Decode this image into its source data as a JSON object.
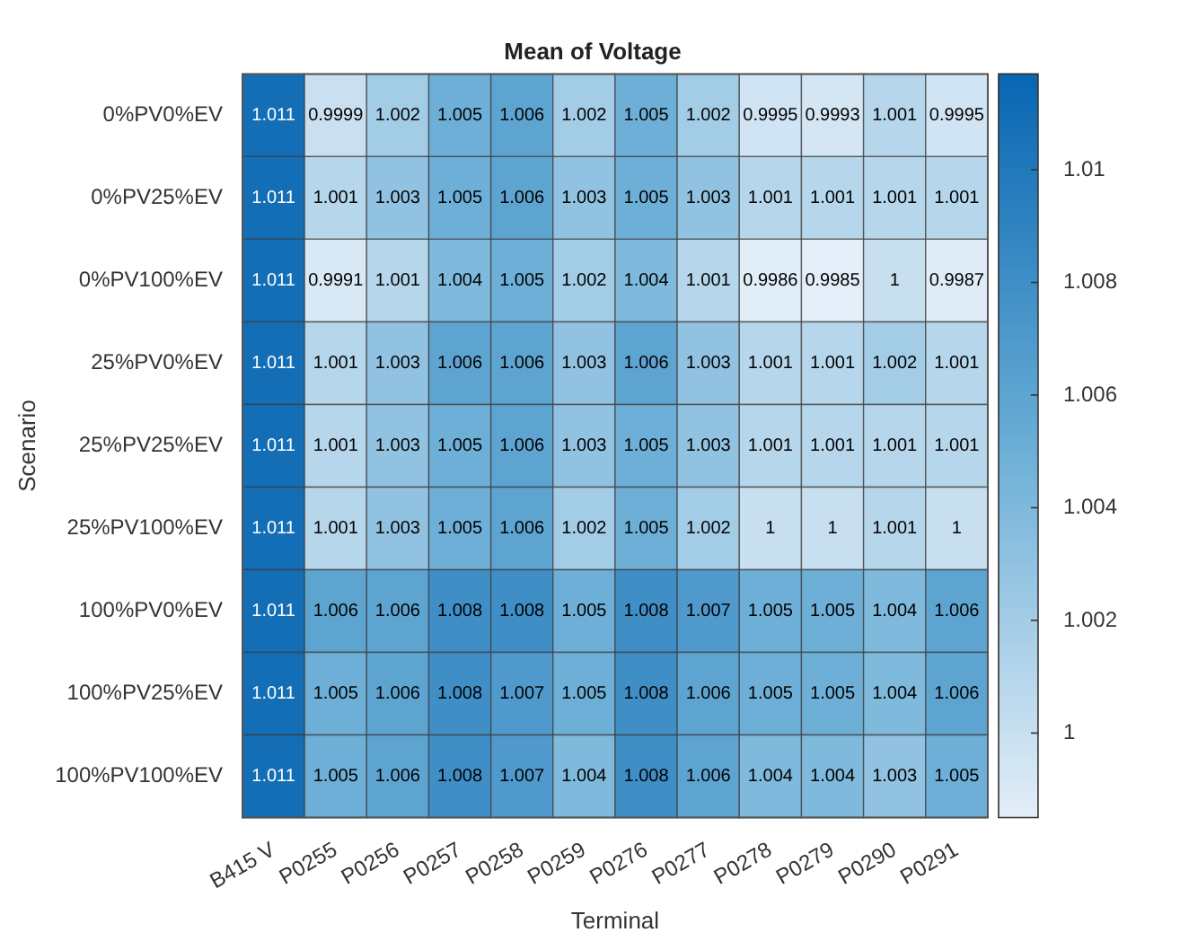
{
  "chart_data": {
    "type": "heatmap",
    "title": "Mean of Voltage",
    "xlabel": "Terminal",
    "ylabel": "Scenario",
    "categories": [
      "B415 V",
      "P0255",
      "P0256",
      "P0257",
      "P0258",
      "P0259",
      "P0276",
      "P0277",
      "P0278",
      "P0279",
      "P0290",
      "P0291"
    ],
    "y_categories": [
      "0%PV0%EV",
      "0%PV25%EV",
      "0%PV100%EV",
      "25%PV0%EV",
      "25%PV25%EV",
      "25%PV100%EV",
      "100%PV0%EV",
      "100%PV25%EV",
      "100%PV100%EV"
    ],
    "cells": [
      [
        1.011,
        0.9999,
        1.002,
        1.005,
        1.006,
        1.002,
        1.005,
        1.002,
        0.9995,
        0.9993,
        1.001,
        0.9995
      ],
      [
        1.011,
        1.001,
        1.003,
        1.005,
        1.006,
        1.003,
        1.005,
        1.003,
        1.001,
        1.001,
        1.001,
        1.001
      ],
      [
        1.011,
        0.9991,
        1.001,
        1.004,
        1.005,
        1.002,
        1.004,
        1.001,
        0.9986,
        0.9985,
        1,
        0.9987
      ],
      [
        1.011,
        1.001,
        1.003,
        1.006,
        1.006,
        1.003,
        1.006,
        1.003,
        1.001,
        1.001,
        1.002,
        1.001
      ],
      [
        1.011,
        1.001,
        1.003,
        1.005,
        1.006,
        1.003,
        1.005,
        1.003,
        1.001,
        1.001,
        1.001,
        1.001
      ],
      [
        1.011,
        1.001,
        1.003,
        1.005,
        1.006,
        1.002,
        1.005,
        1.002,
        1,
        1,
        1.001,
        1
      ],
      [
        1.011,
        1.006,
        1.006,
        1.008,
        1.008,
        1.005,
        1.008,
        1.007,
        1.005,
        1.005,
        1.004,
        1.006
      ],
      [
        1.011,
        1.005,
        1.006,
        1.008,
        1.007,
        1.005,
        1.008,
        1.006,
        1.005,
        1.005,
        1.004,
        1.006
      ],
      [
        1.011,
        1.005,
        1.006,
        1.008,
        1.007,
        1.004,
        1.008,
        1.006,
        1.004,
        1.004,
        1.003,
        1.005
      ]
    ],
    "data_labels": true,
    "clim": [
      0.9985,
      1.0117
    ],
    "cticks": [
      1,
      1.002,
      1.004,
      1.006,
      1.008,
      1.01
    ]
  }
}
